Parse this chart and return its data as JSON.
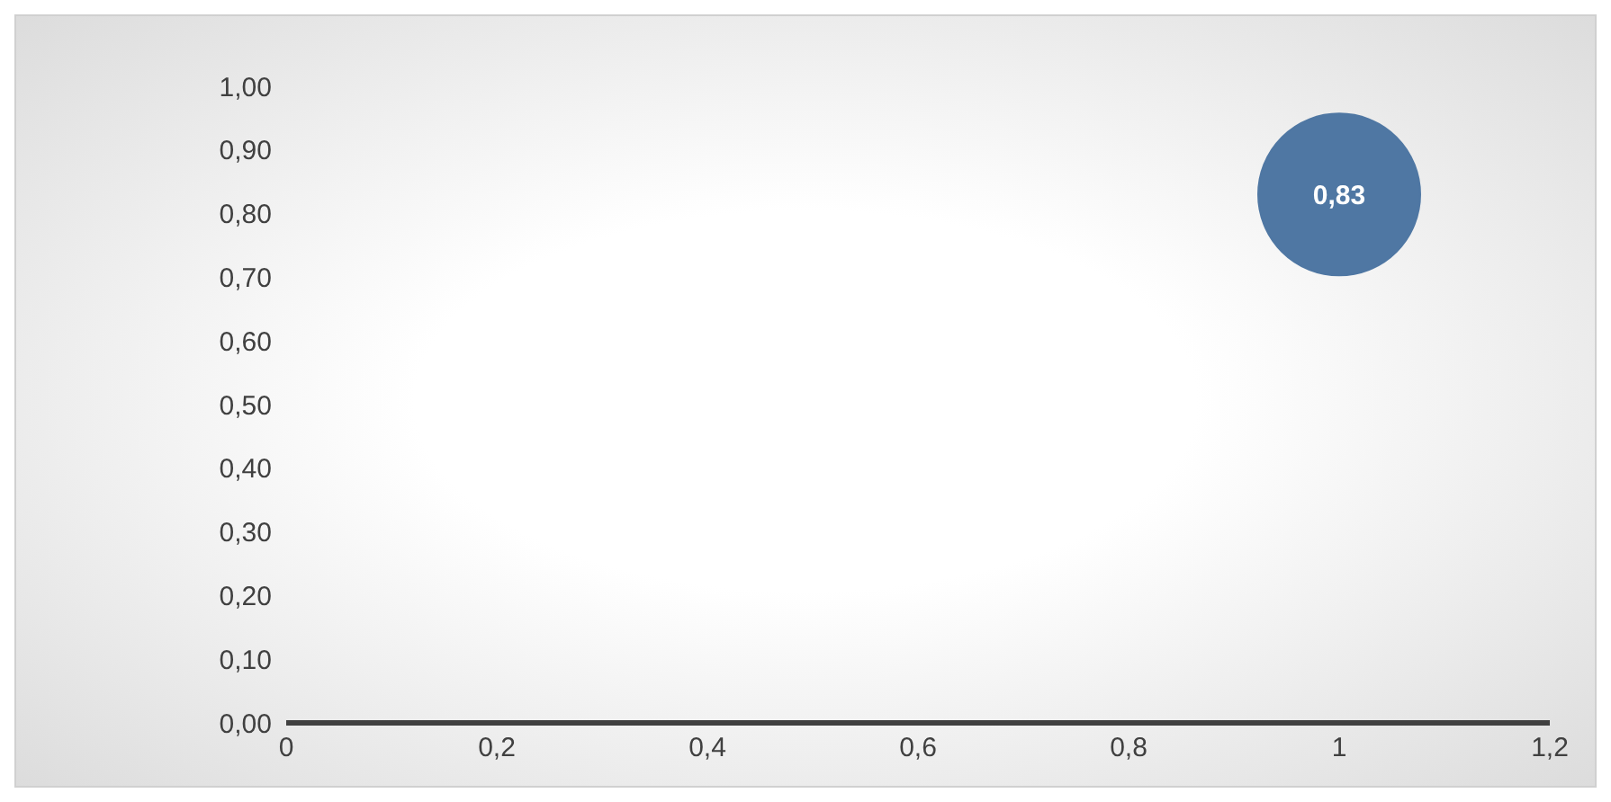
{
  "chart_data": {
    "type": "bubble",
    "x": [
      1
    ],
    "values": [
      0.83
    ],
    "sizes": [
      1
    ],
    "color": "#4f77a3",
    "value_labels": [
      "0,83"
    ],
    "xlim": [
      0,
      1.2
    ],
    "xticks": [
      0,
      {
        "value": 0.2,
        "label": "0,2"
      },
      {
        "value": 0.4,
        "label": "0,4"
      },
      {
        "value": 0.6,
        "label": "0,6"
      },
      {
        "value": 0.8,
        "label": "0,8"
      },
      1,
      {
        "value": 1.2,
        "label": "1,2"
      }
    ],
    "ylim": [
      0,
      1
    ],
    "yticks": [
      {
        "value": 0,
        "label": "0,00"
      },
      {
        "value": 0.1,
        "label": "0,10"
      },
      {
        "value": 0.2,
        "label": "0,20"
      },
      {
        "value": 0.3,
        "label": "0,30"
      },
      {
        "value": 0.4,
        "label": "0,40"
      },
      {
        "value": 0.5,
        "label": "0,50"
      },
      {
        "value": 0.6,
        "label": "0,60"
      },
      {
        "value": 0.7,
        "label": "0,70"
      },
      {
        "value": 0.8,
        "label": "0,80"
      },
      {
        "value": 0.9,
        "label": "0,90"
      },
      {
        "value": 1,
        "label": "1,00"
      }
    ],
    "grid": false,
    "legend": false
  }
}
